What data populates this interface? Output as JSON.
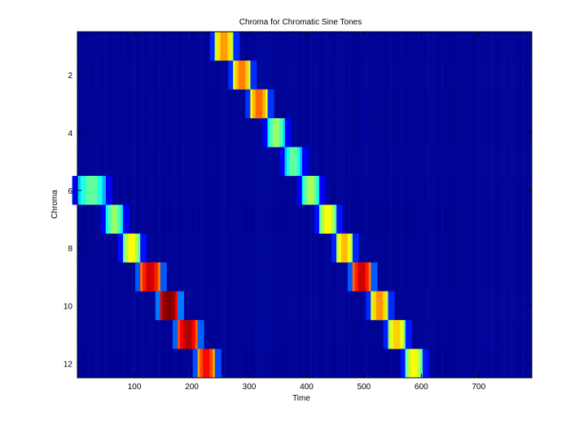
{
  "chart_data": {
    "type": "heatmap",
    "title": "Chroma for Chromatic Sine Tones",
    "xlabel": "Time",
    "ylabel": "Chroma",
    "xlim": [
      0.5,
      792.5
    ],
    "ylim": [
      0.5,
      12.5
    ],
    "y_reversed": true,
    "xticks": [
      100,
      200,
      300,
      400,
      500,
      600,
      700
    ],
    "yticks": [
      2,
      4,
      6,
      8,
      10,
      12
    ],
    "grid": false,
    "legend": "none",
    "colormap": "jet",
    "background_value": 0.07,
    "background_color": "#00008f",
    "cells": [
      {
        "chroma": 6,
        "x_start": 0,
        "x_end": 50,
        "value": 0.4
      },
      {
        "chroma": 7,
        "x_start": 50,
        "x_end": 80,
        "value": 0.45
      },
      {
        "chroma": 8,
        "x_start": 80,
        "x_end": 110,
        "value": 0.55
      },
      {
        "chroma": 9,
        "x_start": 110,
        "x_end": 145,
        "value": 0.85
      },
      {
        "chroma": 10,
        "x_start": 145,
        "x_end": 175,
        "value": 0.97
      },
      {
        "chroma": 11,
        "x_start": 175,
        "x_end": 210,
        "value": 0.88
      },
      {
        "chroma": 12,
        "x_start": 210,
        "x_end": 240,
        "value": 0.8
      },
      {
        "chroma": 1,
        "x_start": 240,
        "x_end": 272,
        "value": 0.65
      },
      {
        "chroma": 2,
        "x_start": 272,
        "x_end": 302,
        "value": 0.68
      },
      {
        "chroma": 3,
        "x_start": 302,
        "x_end": 332,
        "value": 0.7
      },
      {
        "chroma": 4,
        "x_start": 332,
        "x_end": 362,
        "value": 0.45
      },
      {
        "chroma": 5,
        "x_start": 362,
        "x_end": 392,
        "value": 0.4
      },
      {
        "chroma": 6,
        "x_start": 392,
        "x_end": 422,
        "value": 0.47
      },
      {
        "chroma": 7,
        "x_start": 422,
        "x_end": 452,
        "value": 0.55
      },
      {
        "chroma": 8,
        "x_start": 452,
        "x_end": 480,
        "value": 0.62
      },
      {
        "chroma": 9,
        "x_start": 480,
        "x_end": 512,
        "value": 0.85
      },
      {
        "chroma": 10,
        "x_start": 512,
        "x_end": 542,
        "value": 0.66
      },
      {
        "chroma": 11,
        "x_start": 542,
        "x_end": 572,
        "value": 0.6
      },
      {
        "chroma": 12,
        "x_start": 572,
        "x_end": 602,
        "value": 0.55
      }
    ]
  }
}
